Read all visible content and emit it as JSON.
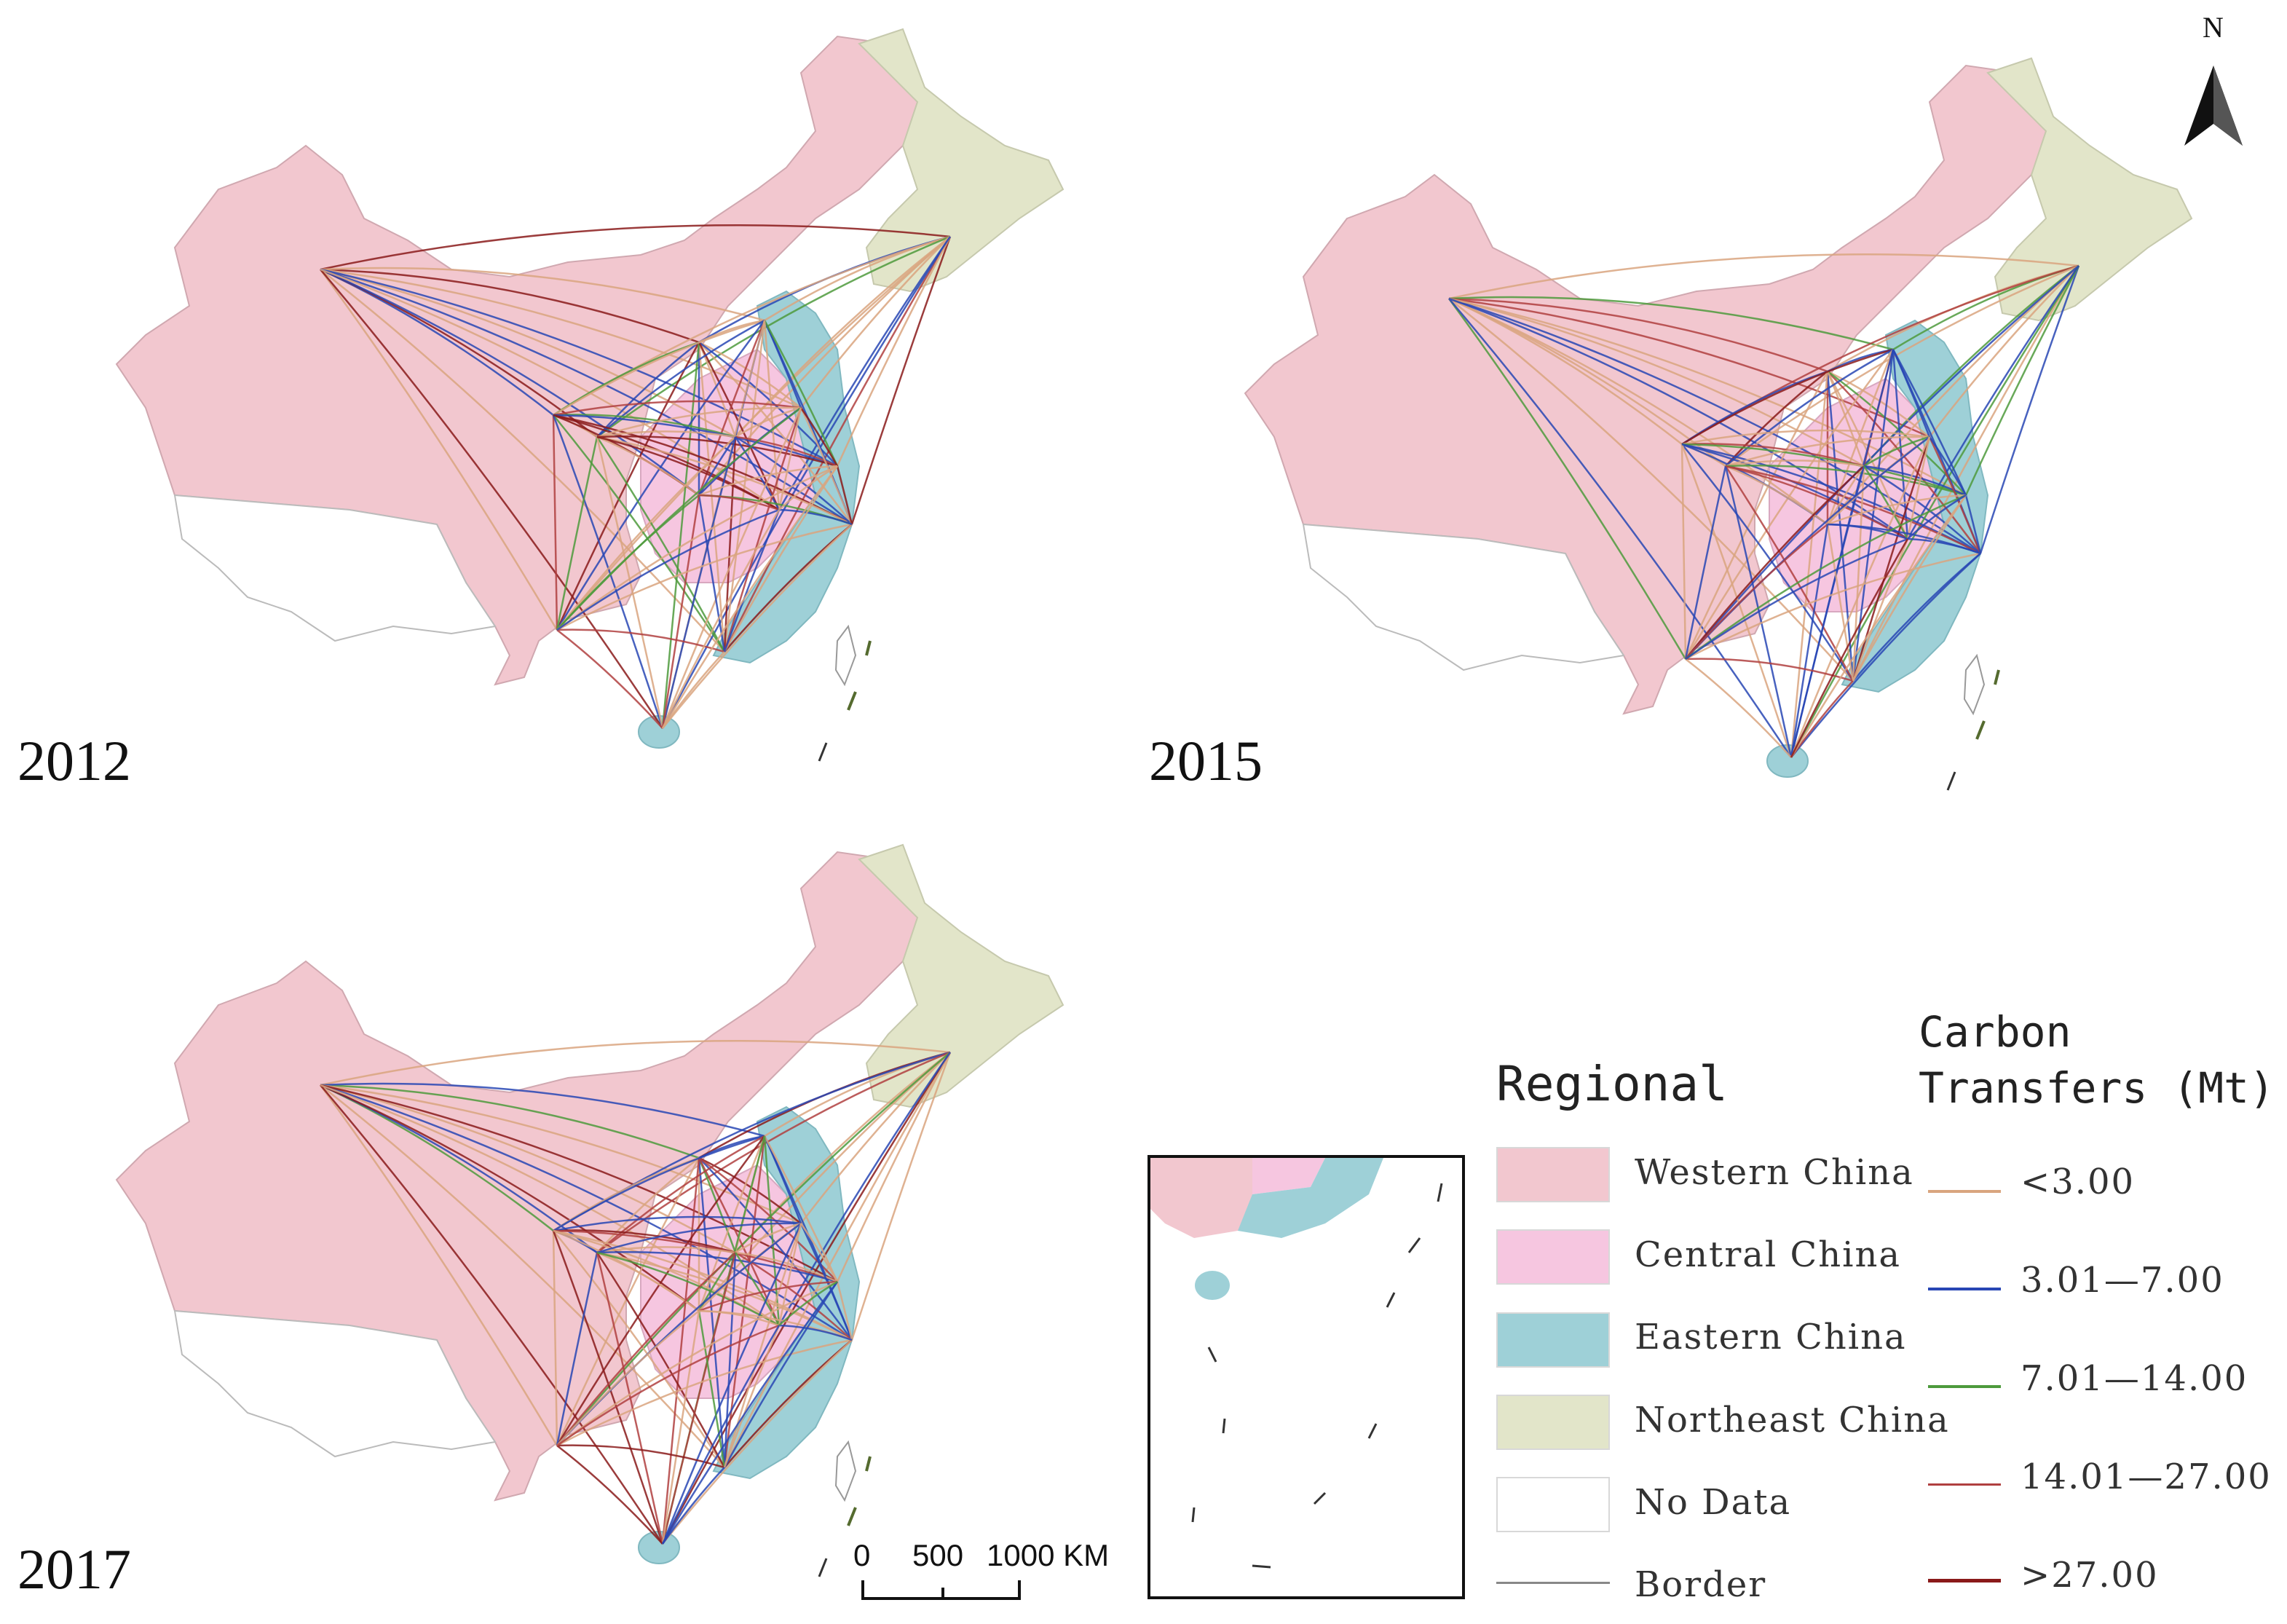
{
  "maps": [
    {
      "year": "2012"
    },
    {
      "year": "2015"
    },
    {
      "year": "2017"
    }
  ],
  "north_arrow": {
    "label": "N"
  },
  "legend_regional": {
    "title": "Regional",
    "items": [
      {
        "label": "Western China",
        "color": "#f2c7cf"
      },
      {
        "label": "Central China",
        "color": "#f6c6e0"
      },
      {
        "label": "Eastern China",
        "color": "#9ed0d7"
      },
      {
        "label": "Northeast China",
        "color": "#e2e5c9"
      },
      {
        "label": "No Data",
        "color": "#ffffff"
      },
      {
        "label": "Border",
        "color": "#888888"
      }
    ]
  },
  "legend_transfers": {
    "title_line1": "Carbon",
    "title_line2": "Transfers (Mt)",
    "items": [
      {
        "label": "<3.00",
        "color": "#d9a57f"
      },
      {
        "label": "3.01—7.00",
        "color": "#2846b4"
      },
      {
        "label": "7.01—14.00",
        "color": "#4d9a3c"
      },
      {
        "label": "14.01—27.00",
        "color": "#b04040"
      },
      {
        "label": ">27.00",
        "color": "#8a1a1a"
      }
    ]
  },
  "scale_bar": {
    "labels": [
      "0",
      "500",
      "1000 KM"
    ]
  },
  "colors": {
    "western": "#f2c7cf",
    "central": "#f6c6e0",
    "eastern": "#9ed0d7",
    "northeast": "#e2e5c9",
    "border": "#888888",
    "flow_lt3": "#d9a57f",
    "flow_3_7": "#2846b4",
    "flow_7_14": "#4d9a3c",
    "flow_14_27": "#b04040",
    "flow_gt27": "#8a1a1a"
  }
}
